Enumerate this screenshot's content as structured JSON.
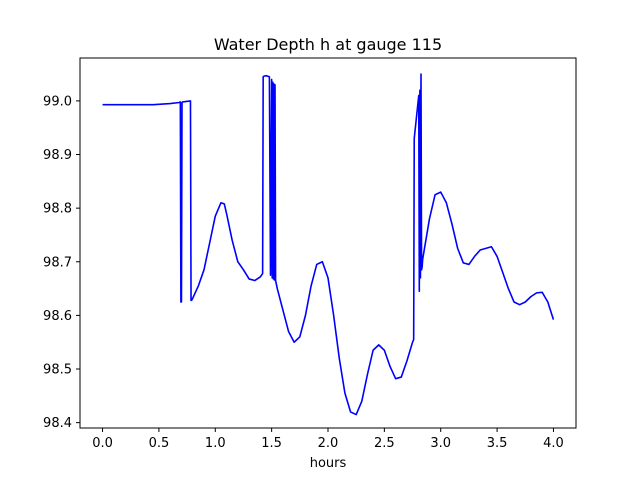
{
  "chart_data": {
    "type": "line",
    "title": "Water Depth h at gauge 115",
    "xlabel": "hours",
    "ylabel": "",
    "xlim": [
      -0.2,
      4.2
    ],
    "ylim": [
      98.39,
      99.08
    ],
    "xticks": [
      0.0,
      0.5,
      1.0,
      1.5,
      2.0,
      2.5,
      3.0,
      3.5,
      4.0
    ],
    "xtick_labels": [
      "0.0",
      "0.5",
      "1.0",
      "1.5",
      "2.0",
      "2.5",
      "3.0",
      "3.5",
      "4.0"
    ],
    "yticks": [
      98.4,
      98.5,
      98.6,
      98.7,
      98.8,
      98.9,
      99.0
    ],
    "ytick_labels": [
      "98.4",
      "98.5",
      "98.6",
      "98.7",
      "98.8",
      "98.9",
      "99.0"
    ],
    "grid": false,
    "legend": "none",
    "series": [
      {
        "color": "#0000ff",
        "x": [
          0.0,
          0.2,
          0.45,
          0.6,
          0.68,
          0.69,
          0.695,
          0.7,
          0.705,
          0.71,
          0.78,
          0.785,
          0.79,
          0.8,
          0.85,
          0.9,
          0.95,
          1.0,
          1.05,
          1.08,
          1.1,
          1.15,
          1.2,
          1.25,
          1.3,
          1.35,
          1.4,
          1.42,
          1.425,
          1.43,
          1.45,
          1.48,
          1.49,
          1.5,
          1.505,
          1.51,
          1.515,
          1.52,
          1.525,
          1.53,
          1.535,
          1.54,
          1.55,
          1.6,
          1.65,
          1.7,
          1.75,
          1.8,
          1.85,
          1.9,
          1.95,
          2.0,
          2.05,
          2.1,
          2.15,
          2.2,
          2.25,
          2.3,
          2.35,
          2.4,
          2.45,
          2.5,
          2.55,
          2.6,
          2.65,
          2.7,
          2.75,
          2.76,
          2.765,
          2.8,
          2.805,
          2.81,
          2.815,
          2.82,
          2.825,
          2.83,
          2.835,
          2.84,
          2.9,
          2.95,
          3.0,
          3.05,
          3.1,
          3.15,
          3.2,
          3.25,
          3.3,
          3.35,
          3.4,
          3.45,
          3.5,
          3.55,
          3.6,
          3.65,
          3.7,
          3.75,
          3.8,
          3.85,
          3.9,
          3.95,
          4.0
        ],
        "y": [
          98.993,
          98.993,
          98.993,
          98.995,
          98.997,
          98.998,
          98.625,
          98.625,
          98.997,
          98.998,
          99.0,
          98.628,
          98.628,
          98.632,
          98.655,
          98.685,
          98.735,
          98.785,
          98.81,
          98.808,
          98.79,
          98.74,
          98.7,
          98.685,
          98.668,
          98.665,
          98.672,
          98.678,
          99.045,
          99.046,
          99.047,
          99.045,
          98.675,
          99.04,
          98.67,
          99.035,
          98.668,
          99.032,
          98.666,
          99.03,
          98.665,
          98.66,
          98.65,
          98.61,
          98.57,
          98.55,
          98.56,
          98.6,
          98.655,
          98.695,
          98.7,
          98.67,
          98.6,
          98.52,
          98.455,
          98.42,
          98.415,
          98.44,
          98.49,
          98.535,
          98.545,
          98.535,
          98.505,
          98.482,
          98.485,
          98.515,
          98.55,
          98.555,
          98.93,
          99.0,
          99.01,
          98.645,
          99.02,
          98.67,
          99.05,
          98.685,
          98.69,
          98.705,
          98.78,
          98.825,
          98.83,
          98.81,
          98.77,
          98.725,
          98.698,
          98.695,
          98.71,
          98.722,
          98.725,
          98.728,
          98.71,
          98.68,
          98.65,
          98.625,
          98.62,
          98.625,
          98.635,
          98.642,
          98.643,
          98.625,
          98.592
        ]
      }
    ]
  }
}
